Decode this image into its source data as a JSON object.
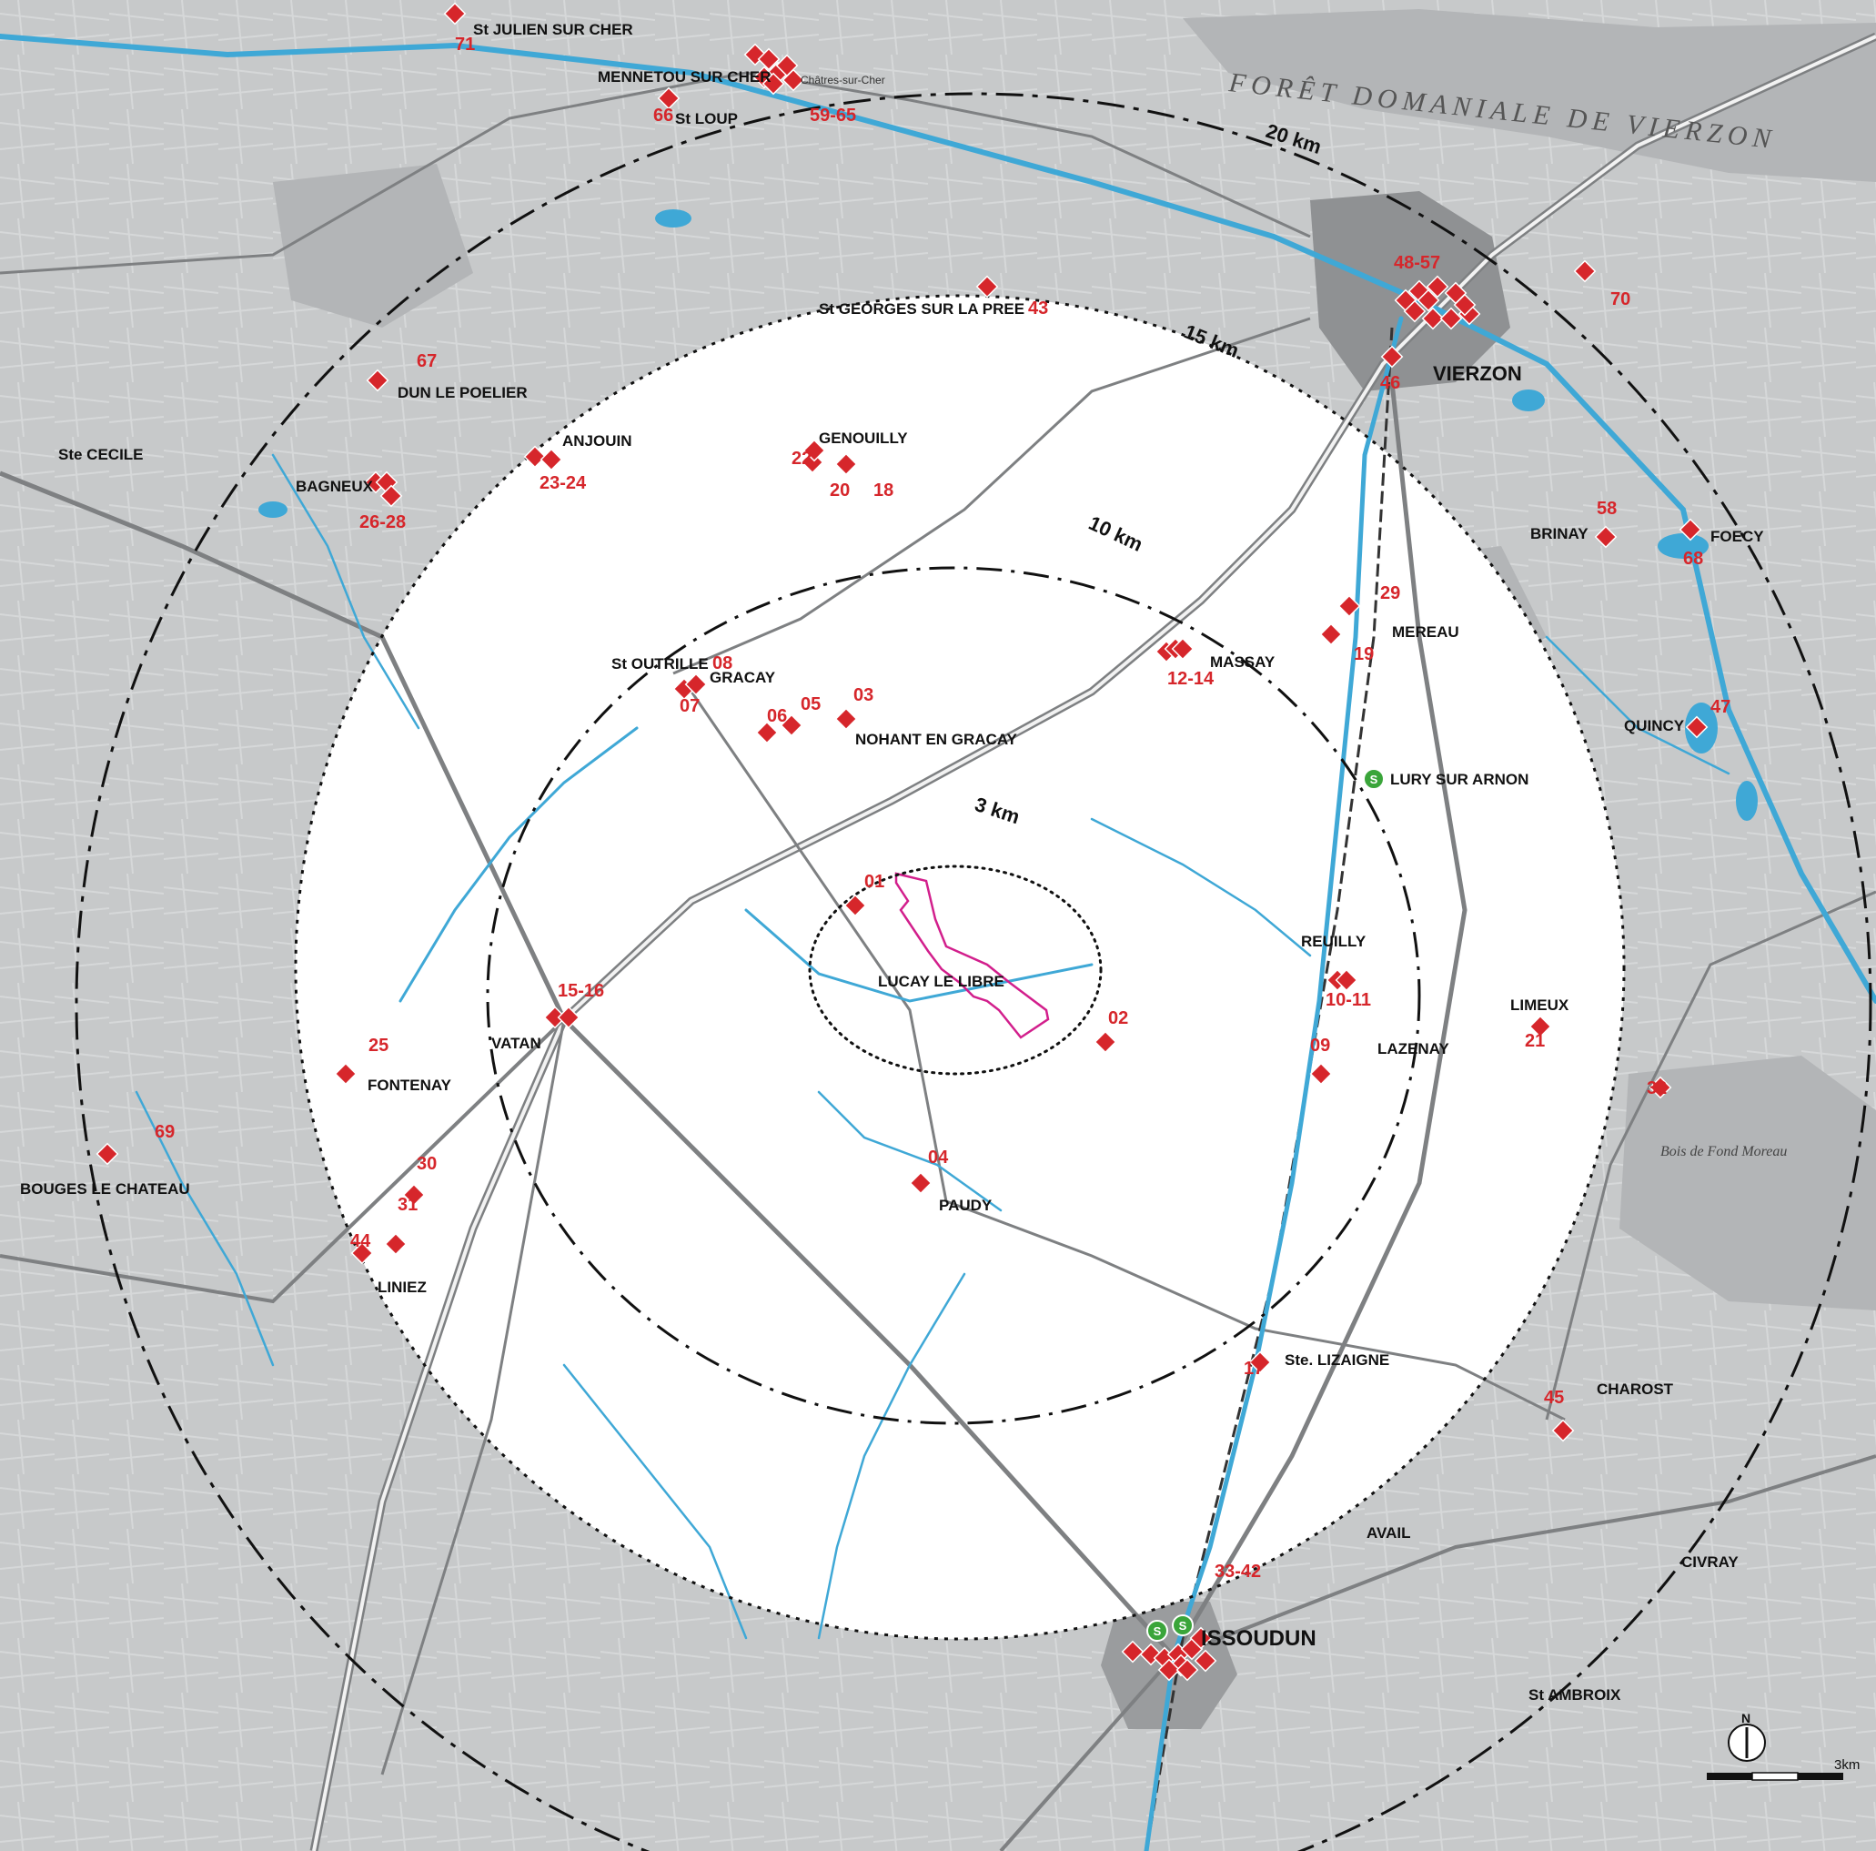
{
  "map": {
    "rings": [
      {
        "id": "r3",
        "label": "3 km"
      },
      {
        "id": "r10",
        "label": "10 km"
      },
      {
        "id": "r15",
        "label": "15 km"
      },
      {
        "id": "r20",
        "label": "20 km"
      }
    ],
    "towns": [
      {
        "id": "t-julien",
        "label": "St JULIEN SUR CHER"
      },
      {
        "id": "t-mennetou",
        "label": "MENNETOU SUR CHER"
      },
      {
        "id": "t-stloup",
        "label": "St LOUP"
      },
      {
        "id": "t-chatres",
        "label": "Châtres-sur-Cher"
      },
      {
        "id": "t-vierzon",
        "label": "VIERZON"
      },
      {
        "id": "t-stgeorges",
        "label": "St GEORGES SUR LA PREE"
      },
      {
        "id": "t-dun",
        "label": "DUN LE POELIER"
      },
      {
        "id": "t-anjouin",
        "label": "ANJOUIN"
      },
      {
        "id": "t-bagneux",
        "label": "BAGNEUX"
      },
      {
        "id": "t-cecile",
        "label": "Ste CECILE"
      },
      {
        "id": "t-genouilly",
        "label": "GENOUILLY"
      },
      {
        "id": "t-outrille",
        "label": "St OUTRILLE"
      },
      {
        "id": "t-gracay",
        "label": "GRACAY"
      },
      {
        "id": "t-nohant",
        "label": "NOHANT EN GRACAY"
      },
      {
        "id": "t-massay",
        "label": "MASSAY"
      },
      {
        "id": "t-mereau",
        "label": "MEREAU"
      },
      {
        "id": "t-brinay",
        "label": "BRINAY"
      },
      {
        "id": "t-foecy",
        "label": "FOECY"
      },
      {
        "id": "t-quincy",
        "label": "QUINCY"
      },
      {
        "id": "t-lury",
        "label": "LURY SUR ARNON"
      },
      {
        "id": "t-lucay",
        "label": "LUCAY LE LIBRE"
      },
      {
        "id": "t-reuilly",
        "label": "REUILLY"
      },
      {
        "id": "t-lazenay",
        "label": "LAZENAY"
      },
      {
        "id": "t-limeux",
        "label": "LIMEUX"
      },
      {
        "id": "t-vatan",
        "label": "VATAN"
      },
      {
        "id": "t-fontenay",
        "label": "FONTENAY"
      },
      {
        "id": "t-bouges",
        "label": "BOUGES LE CHATEAU"
      },
      {
        "id": "t-paudy",
        "label": "PAUDY"
      },
      {
        "id": "t-linez",
        "label": "LINIEZ"
      },
      {
        "id": "t-lizaigne",
        "label": "Ste. LIZAIGNE"
      },
      {
        "id": "t-charost",
        "label": "CHAROST"
      },
      {
        "id": "t-avail",
        "label": "AVAIL"
      },
      {
        "id": "t-civray",
        "label": "CIVRAY"
      },
      {
        "id": "t-issoudun",
        "label": "ISSOUDUN"
      },
      {
        "id": "t-ambroix",
        "label": "St AMBROIX"
      },
      {
        "id": "t-foret",
        "label": "FORÊT DOMANIALE DE VIERZON"
      },
      {
        "id": "t-bois",
        "label": "Bois de Fond Moreau"
      }
    ],
    "sites": [
      {
        "id": "s01",
        "label": "01"
      },
      {
        "id": "s02",
        "label": "02"
      },
      {
        "id": "s03",
        "label": "03"
      },
      {
        "id": "s04",
        "label": "04"
      },
      {
        "id": "s05",
        "label": "05"
      },
      {
        "id": "s06",
        "label": "06"
      },
      {
        "id": "s07",
        "label": "07"
      },
      {
        "id": "s08",
        "label": "08"
      },
      {
        "id": "s09",
        "label": "09"
      },
      {
        "id": "s1011",
        "label": "10-11"
      },
      {
        "id": "s1214",
        "label": "12-14"
      },
      {
        "id": "s1516",
        "label": "15-16"
      },
      {
        "id": "s17",
        "label": "17"
      },
      {
        "id": "s18",
        "label": "18"
      },
      {
        "id": "s19",
        "label": "19"
      },
      {
        "id": "s20",
        "label": "20"
      },
      {
        "id": "s21",
        "label": "21"
      },
      {
        "id": "s22",
        "label": "22"
      },
      {
        "id": "s2324",
        "label": "23-24"
      },
      {
        "id": "s25",
        "label": "25"
      },
      {
        "id": "s2628",
        "label": "26-28"
      },
      {
        "id": "s29",
        "label": "29"
      },
      {
        "id": "s30",
        "label": "30"
      },
      {
        "id": "s31",
        "label": "31"
      },
      {
        "id": "s32",
        "label": "32"
      },
      {
        "id": "s3342",
        "label": "33-42"
      },
      {
        "id": "s43",
        "label": "43"
      },
      {
        "id": "s44",
        "label": "44"
      },
      {
        "id": "s45",
        "label": "45"
      },
      {
        "id": "s46",
        "label": "46"
      },
      {
        "id": "s47",
        "label": "47"
      },
      {
        "id": "s4857",
        "label": "48-57"
      },
      {
        "id": "s58",
        "label": "58"
      },
      {
        "id": "s5965",
        "label": "59-65"
      },
      {
        "id": "s66",
        "label": "66"
      },
      {
        "id": "s67",
        "label": "67"
      },
      {
        "id": "s68",
        "label": "68"
      },
      {
        "id": "s69",
        "label": "69"
      },
      {
        "id": "s70",
        "label": "70"
      },
      {
        "id": "s71",
        "label": "71"
      }
    ],
    "stations": [
      {
        "id": "st-lury",
        "label": "S"
      },
      {
        "id": "st-iss1",
        "label": "S"
      },
      {
        "id": "st-iss2",
        "label": "S"
      }
    ],
    "north_label": "N",
    "scale_label": "3km",
    "colors": {
      "base": "#c9cbcc",
      "inner": "#ffffff",
      "water": "#3fa8d6",
      "site": "#d6262b",
      "station": "#3aa53a",
      "boundary": "#d21f8c"
    }
  }
}
